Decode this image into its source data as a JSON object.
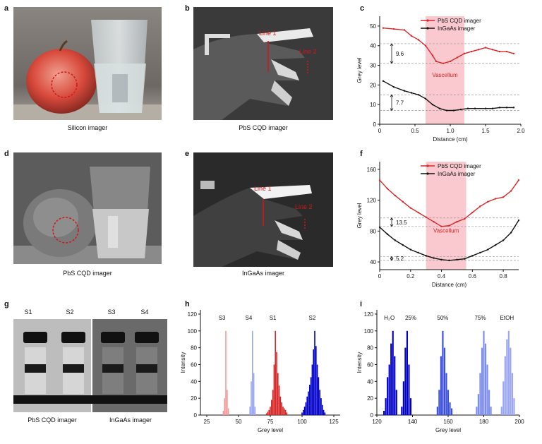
{
  "panels": {
    "a": {
      "letter": "a",
      "caption": "Silicon imager"
    },
    "b": {
      "letter": "b",
      "caption": "PbS CQD imager",
      "line1": "Line 1",
      "line2": "Line 2"
    },
    "c": {
      "letter": "c"
    },
    "d": {
      "letter": "d",
      "caption": "PbS CQD imager"
    },
    "e": {
      "letter": "e",
      "caption": "InGaAs imager",
      "line1": "Line 1",
      "line2": "Line 2"
    },
    "f": {
      "letter": "f"
    },
    "g": {
      "letter": "g",
      "captions": [
        "PbS CQD imager",
        "InGaAs imager"
      ],
      "vials": [
        "S1",
        "S2",
        "S3",
        "S4"
      ]
    },
    "h": {
      "letter": "h"
    },
    "i": {
      "letter": "i"
    }
  },
  "colors": {
    "red": "#d62728",
    "black": "#111111",
    "pink": "#f9c9cf",
    "dkblue": "#0000c8",
    "ltblue": "#9aa6f2",
    "ltred": "#f29a9a"
  },
  "chart_data": [
    {
      "id": "c",
      "type": "line",
      "xlabel": "Distance (cm)",
      "ylabel": "Grey level",
      "xlim": [
        0,
        2.0
      ],
      "ylim": [
        0,
        55
      ],
      "xticks": [
        "0",
        "0.5",
        "1.0",
        "1.5",
        "2.0"
      ],
      "yticks": [
        "0",
        "10",
        "20",
        "30",
        "40",
        "50"
      ],
      "legend": [
        "PbS CQD imager",
        "InGaAs imager"
      ],
      "shaded": [
        0.65,
        1.2
      ],
      "shaded_label": "Vascellum",
      "annotations": [
        "9.6",
        "7.7"
      ],
      "series": [
        {
          "name": "PbS CQD imager",
          "color": "red",
          "x": [
            0.05,
            0.2,
            0.35,
            0.45,
            0.55,
            0.65,
            0.75,
            0.8,
            0.9,
            1.0,
            1.1,
            1.2,
            1.3,
            1.4,
            1.5,
            1.6,
            1.7,
            1.8,
            1.9
          ],
          "y": [
            49,
            48.5,
            48,
            45,
            43,
            40,
            35,
            32,
            31,
            32,
            34,
            36,
            37,
            38,
            39,
            38,
            37,
            37,
            36
          ]
        },
        {
          "name": "InGaAs imager",
          "color": "black",
          "x": [
            0.05,
            0.2,
            0.35,
            0.45,
            0.55,
            0.65,
            0.75,
            0.85,
            0.95,
            1.05,
            1.15,
            1.25,
            1.35,
            1.5,
            1.6,
            1.7,
            1.8,
            1.9
          ],
          "y": [
            22,
            19,
            17,
            16,
            15,
            13,
            10,
            8,
            7,
            7,
            7.5,
            8,
            8,
            8,
            8,
            8.5,
            8.5,
            8.5
          ]
        }
      ]
    },
    {
      "id": "f",
      "type": "line",
      "xlabel": "Distance (cm)",
      "ylabel": "Grey level",
      "xlim": [
        0,
        0.9
      ],
      "ylim": [
        30,
        170
      ],
      "xticks": [
        "0",
        "0.2",
        "0.4",
        "0.6",
        "0.8"
      ],
      "yticks": [
        "40",
        "80",
        "120",
        "160"
      ],
      "legend": [
        "PbS CQD imager",
        "InGaAs imager"
      ],
      "shaded": [
        0.3,
        0.56
      ],
      "shaded_label": "Vascellum",
      "annotations": [
        "13.5",
        "5.2"
      ],
      "series": [
        {
          "name": "PbS CQD imager",
          "color": "red",
          "x": [
            0,
            0.05,
            0.1,
            0.15,
            0.2,
            0.25,
            0.3,
            0.35,
            0.4,
            0.45,
            0.5,
            0.55,
            0.6,
            0.65,
            0.7,
            0.75,
            0.8,
            0.85,
            0.9
          ],
          "y": [
            146,
            135,
            126,
            118,
            110,
            104,
            98,
            92,
            86,
            87,
            92,
            96,
            104,
            112,
            118,
            122,
            124,
            132,
            146
          ]
        },
        {
          "name": "InGaAs imager",
          "color": "black",
          "x": [
            0,
            0.05,
            0.1,
            0.15,
            0.2,
            0.25,
            0.3,
            0.35,
            0.4,
            0.45,
            0.5,
            0.55,
            0.6,
            0.65,
            0.7,
            0.75,
            0.8,
            0.85,
            0.9
          ],
          "y": [
            85,
            76,
            68,
            62,
            56,
            52,
            48,
            45,
            43,
            42,
            43,
            44,
            48,
            52,
            56,
            62,
            68,
            78,
            94
          ]
        }
      ]
    },
    {
      "id": "h",
      "type": "bar",
      "xlabel": "Grey level",
      "ylabel": "Intensity",
      "xlim": [
        20,
        130
      ],
      "ylim": [
        0,
        125
      ],
      "xticks": [
        "25",
        "50",
        "75",
        "100",
        "125"
      ],
      "yticks": [
        "0",
        "20",
        "40",
        "60",
        "80",
        "100",
        "120"
      ],
      "labels": [
        {
          "text": "S3",
          "x": 37
        },
        {
          "text": "S4",
          "x": 58
        },
        {
          "text": "S1",
          "x": 77
        },
        {
          "text": "S2",
          "x": 108
        }
      ],
      "series": [
        {
          "name": "S3",
          "color": "ltred",
          "x": [
            38,
            39,
            40,
            41,
            42
          ],
          "values": [
            5,
            20,
            100,
            30,
            8
          ]
        },
        {
          "name": "S4",
          "color": "ltblue",
          "x": [
            59,
            60,
            61,
            62,
            63
          ],
          "values": [
            10,
            40,
            100,
            50,
            10
          ]
        },
        {
          "name": "S1",
          "color": "red",
          "x": [
            72,
            73,
            74,
            75,
            76,
            77,
            78,
            79,
            80,
            81,
            82,
            83,
            84,
            85,
            86,
            87,
            88
          ],
          "values": [
            2,
            4,
            6,
            10,
            18,
            30,
            60,
            100,
            75,
            50,
            35,
            22,
            15,
            10,
            8,
            6,
            3
          ]
        },
        {
          "name": "S2",
          "color": "dkblue",
          "x": [
            100,
            101,
            102,
            103,
            104,
            105,
            106,
            107,
            108,
            109,
            110,
            111,
            112,
            113,
            114,
            115,
            116,
            117,
            118
          ],
          "values": [
            3,
            6,
            10,
            15,
            22,
            28,
            36,
            45,
            60,
            78,
            100,
            82,
            60,
            45,
            30,
            20,
            12,
            6,
            3
          ]
        }
      ]
    },
    {
      "id": "i",
      "type": "bar",
      "xlabel": "Grey level",
      "ylabel": "Intensity",
      "xlim": [
        120,
        200
      ],
      "ylim": [
        0,
        125
      ],
      "xticks": [
        "120",
        "140",
        "160",
        "180",
        "200"
      ],
      "yticks": [
        "0",
        "20",
        "40",
        "60",
        "80",
        "100",
        "120"
      ],
      "labels": [
        {
          "text": "H₂O",
          "x": 127
        },
        {
          "text": "25%",
          "x": 139
        },
        {
          "text": "50%",
          "x": 157
        },
        {
          "text": "75%",
          "x": 178
        },
        {
          "text": "EtOH",
          "x": 193
        }
      ],
      "series": [
        {
          "name": "H₂O",
          "color": "dkblue",
          "x": [
            124,
            125,
            126,
            127,
            128,
            129,
            130,
            131
          ],
          "values": [
            5,
            20,
            45,
            60,
            85,
            100,
            70,
            30
          ]
        },
        {
          "name": "25%",
          "color": "dkblue",
          "x": [
            134,
            135,
            136,
            137,
            138,
            139
          ],
          "values": [
            10,
            40,
            80,
            100,
            60,
            20
          ]
        },
        {
          "name": "50%",
          "color": "#3b4fe0",
          "x": [
            154,
            155,
            156,
            157,
            158,
            159,
            160,
            161,
            162
          ],
          "values": [
            10,
            30,
            70,
            100,
            80,
            50,
            30,
            15,
            8
          ]
        },
        {
          "name": "75%",
          "color": "#7d8cf0",
          "x": [
            176,
            177,
            178,
            179,
            180,
            181,
            182,
            183,
            184
          ],
          "values": [
            10,
            25,
            50,
            80,
            100,
            85,
            60,
            30,
            10
          ]
        },
        {
          "name": "EtOH",
          "color": "ltblue",
          "x": [
            190,
            191,
            192,
            193,
            194,
            195,
            196,
            197
          ],
          "values": [
            10,
            40,
            70,
            90,
            100,
            80,
            50,
            20
          ]
        }
      ]
    }
  ]
}
